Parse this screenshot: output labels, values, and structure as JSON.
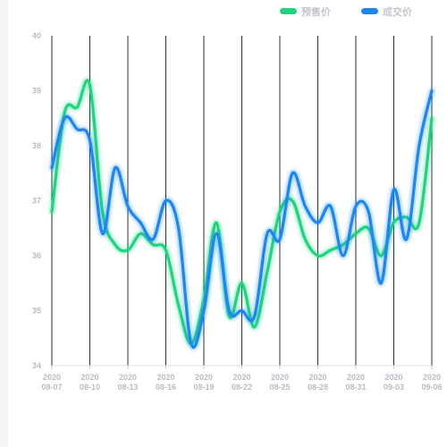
{
  "chart_data": {
    "type": "line",
    "categories": [
      "2020-08-07",
      "2020-08-08",
      "2020-08-09",
      "2020-08-10",
      "2020-08-11",
      "2020-08-12",
      "2020-08-13",
      "2020-08-14",
      "2020-08-15",
      "2020-08-16",
      "2020-08-17",
      "2020-08-18",
      "2020-08-19",
      "2020-08-20",
      "2020-08-21",
      "2020-08-22",
      "2020-08-23",
      "2020-08-24",
      "2020-08-25",
      "2020-08-26",
      "2020-08-27",
      "2020-08-28",
      "2020-08-29",
      "2020-08-30",
      "2020-08-31",
      "2020-09-01",
      "2020-09-02",
      "2020-09-03",
      "2020-09-04",
      "2020-09-05",
      "2020-09-06"
    ],
    "x_tick_labels": [
      {
        "line1": "2020",
        "line2": "08-07"
      },
      {
        "line1": "2020",
        "line2": "08-10"
      },
      {
        "line1": "2020",
        "line2": "08-13"
      },
      {
        "line1": "2020",
        "line2": "08-16"
      },
      {
        "line1": "2020",
        "line2": "08-19"
      },
      {
        "line1": "2020",
        "line2": "08-22"
      },
      {
        "line1": "2020",
        "line2": "08-25"
      },
      {
        "line1": "2020",
        "line2": "08-28"
      },
      {
        "line1": "2020",
        "line2": "08-31"
      },
      {
        "line1": "2020",
        "line2": "09-03"
      },
      {
        "line1": "2020",
        "line2": "09-06"
      }
    ],
    "y_ticks": [
      "34",
      "35",
      "36",
      "37",
      "38",
      "39",
      "40"
    ],
    "ylim": [
      34,
      40
    ],
    "grid": "vertical lines at labeled dates",
    "legend_position": "top-right",
    "series": [
      {
        "name": "预售价",
        "color": "#1fd47e",
        "values": [
          36.8,
          38.6,
          38.7,
          39.1,
          36.8,
          36.2,
          36.1,
          36.4,
          36.2,
          36.1,
          35.1,
          34.4,
          35.2,
          36.6,
          34.9,
          35.5,
          34.7,
          35.7,
          36.8,
          37.0,
          36.3,
          36.0,
          36.1,
          36.2,
          36.4,
          36.5,
          36.0,
          36.6,
          36.7,
          36.6,
          38.5
        ]
      },
      {
        "name": "成交价",
        "color": "#1a87f5",
        "values": [
          37.6,
          38.5,
          38.3,
          38.1,
          36.4,
          37.6,
          36.9,
          36.6,
          36.3,
          37.0,
          36.5,
          34.4,
          35.0,
          36.4,
          35.0,
          35.0,
          34.9,
          36.4,
          36.3,
          37.5,
          36.9,
          36.6,
          36.9,
          36.0,
          36.9,
          36.8,
          35.5,
          37.2,
          36.3,
          38.0,
          39.0
        ]
      }
    ]
  }
}
